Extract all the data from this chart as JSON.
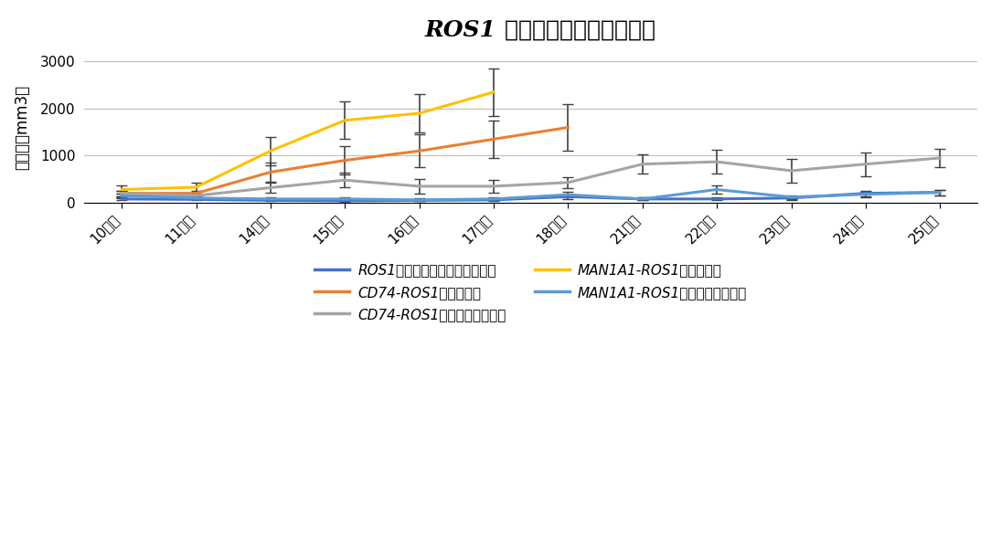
{
  "title_italic": "ROS1",
  "title_rest": " 融合遺伝子腫瘍の腫瘍径",
  "ylabel": "腫瘍量（mm3）",
  "x_labels": [
    "10日目",
    "11日目",
    "14日目",
    "15日目",
    "16日目",
    "17日目",
    "18日目",
    "21日目",
    "22日目",
    "23日目",
    "24日目",
    "25日目"
  ],
  "series": [
    {
      "label_italic": "ROS1",
      "label_rest": "（非融合遺伝子・薬無し）",
      "color": "#4472C4",
      "values": [
        80,
        70,
        50,
        40,
        50,
        60,
        130,
        80,
        80,
        100,
        200,
        220
      ],
      "errors": [
        20,
        20,
        20,
        20,
        20,
        30,
        50,
        30,
        30,
        40,
        60,
        60
      ]
    },
    {
      "label_italic": "CD74-ROS1",
      "label_rest": "（薬無し）",
      "color": "#ED7D31",
      "values": [
        200,
        200,
        650,
        900,
        1100,
        1350,
        1600,
        null,
        null,
        null,
        null,
        null
      ],
      "errors": [
        60,
        60,
        200,
        300,
        350,
        400,
        500,
        null,
        null,
        null,
        null,
        null
      ]
    },
    {
      "label_italic": "CD74-ROS1",
      "label_rest": "（クリゾチニブ）",
      "color": "#A5A5A5",
      "values": [
        200,
        150,
        320,
        480,
        350,
        350,
        430,
        820,
        870,
        680,
        820,
        950
      ],
      "errors": [
        60,
        50,
        100,
        150,
        150,
        130,
        120,
        200,
        250,
        250,
        250,
        200
      ]
    },
    {
      "label_italic": "MAN1A1-ROS1",
      "label_rest": "（薬無し）",
      "color": "#FFC000",
      "values": [
        280,
        330,
        1100,
        1750,
        1900,
        2350,
        null,
        null,
        null,
        null,
        null,
        null
      ],
      "errors": [
        80,
        100,
        300,
        400,
        400,
        500,
        null,
        null,
        null,
        null,
        null,
        null
      ]
    },
    {
      "label_italic": "MAN1A1-ROS1",
      "label_rest": "（クリゾチニブ）",
      "color": "#5B9BD5",
      "values": [
        150,
        100,
        80,
        80,
        60,
        80,
        170,
        80,
        280,
        120,
        180,
        220
      ],
      "errors": [
        40,
        30,
        30,
        30,
        30,
        30,
        60,
        30,
        80,
        40,
        60,
        60
      ]
    }
  ],
  "ylim": [
    0,
    3200
  ],
  "yticks": [
    0,
    1000,
    2000,
    3000
  ],
  "background_color": "#FFFFFF",
  "grid_color": "#BFBFBF",
  "title_fontsize": 18,
  "axis_fontsize": 11,
  "legend_fontsize": 11,
  "legend_order": [
    0,
    1,
    2,
    3,
    4
  ]
}
